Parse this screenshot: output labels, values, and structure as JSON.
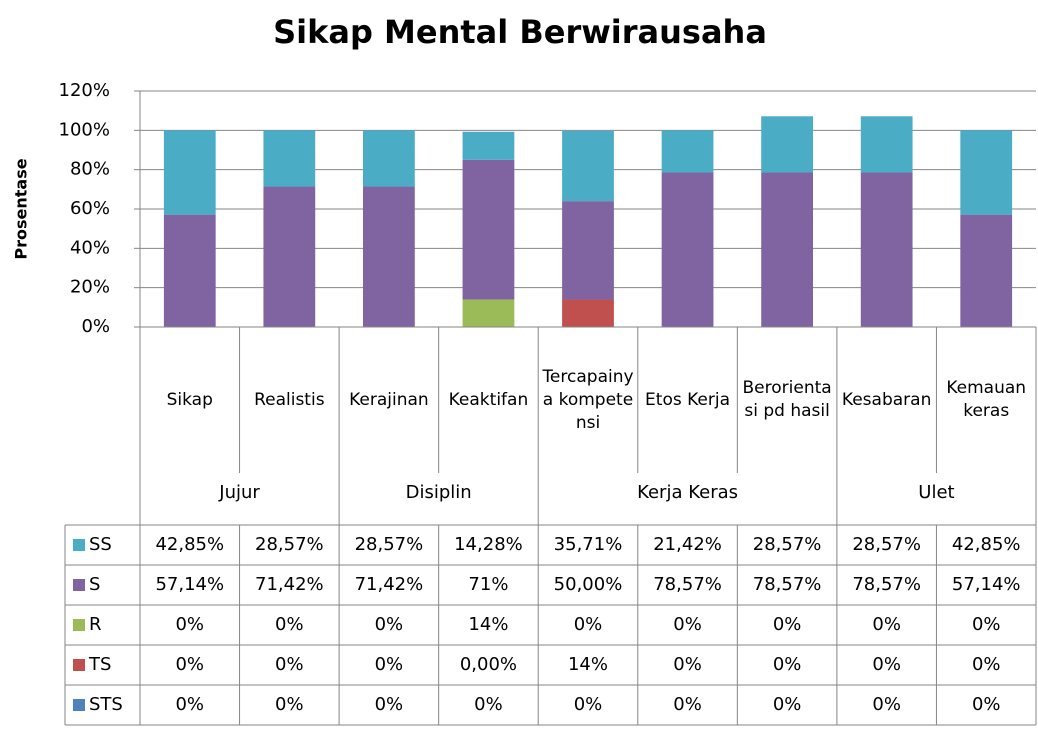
{
  "chart_data": {
    "type": "bar",
    "stacked": true,
    "title": "Sikap Mental Berwirausaha",
    "y_label": "Prosentase",
    "groups": [
      {
        "name": "Jujur",
        "categories": [
          "Sikap",
          "Realistis"
        ]
      },
      {
        "name": "Disiplin",
        "categories": [
          "Kerajinan",
          "Keaktifan"
        ]
      },
      {
        "name": "Kerja Keras",
        "categories": [
          "Tercapainya kompetensi",
          "Etos Kerja",
          "Berorientasi pd hasil"
        ]
      },
      {
        "name": "Ulet",
        "categories": [
          "Kesabaran",
          "Kemauan keras"
        ]
      }
    ],
    "series": [
      {
        "name": "SS",
        "color": "#4bacc6",
        "values": [
          42.85,
          28.57,
          28.57,
          14.28,
          35.71,
          21.42,
          28.57,
          28.57,
          42.85
        ],
        "value_labels": [
          "42,85%",
          "28,57%",
          "28,57%",
          "14,28%",
          "35,71%",
          "21,42%",
          "28,57%",
          "28,57%",
          "42,85%"
        ]
      },
      {
        "name": "S",
        "color": "#8064a2",
        "values": [
          57.14,
          71.42,
          71.42,
          71,
          50.0,
          78.57,
          78.57,
          78.57,
          57.14
        ],
        "value_labels": [
          "57,14%",
          "71,42%",
          "71,42%",
          "71%",
          "50,00%",
          "78,57%",
          "78,57%",
          "78,57%",
          "57,14%"
        ]
      },
      {
        "name": "R",
        "color": "#9bbb59",
        "values": [
          0,
          0,
          0,
          14,
          0,
          0,
          0,
          0,
          0
        ],
        "value_labels": [
          "0%",
          "0%",
          "0%",
          "14%",
          "0%",
          "0%",
          "0%",
          "0%",
          "0%"
        ]
      },
      {
        "name": "TS",
        "color": "#c0504d",
        "values": [
          0,
          0,
          0,
          0,
          14,
          0,
          0,
          0,
          0
        ],
        "value_labels": [
          "0%",
          "0%",
          "0%",
          "0,00%",
          "14%",
          "0%",
          "0%",
          "0%",
          "0%"
        ]
      },
      {
        "name": "STS",
        "color": "#4f81bd",
        "values": [
          0,
          0,
          0,
          0,
          0,
          0,
          0,
          0,
          0
        ],
        "value_labels": [
          "0%",
          "0%",
          "0%",
          "0%",
          "0%",
          "0%",
          "0%",
          "0%",
          "0%"
        ]
      }
    ],
    "ylim": [
      0,
      120
    ],
    "yticks": [
      {
        "value": 0,
        "label": "0%"
      },
      {
        "value": 20,
        "label": "20%"
      },
      {
        "value": 40,
        "label": "40%"
      },
      {
        "value": 60,
        "label": "60%"
      },
      {
        "value": 80,
        "label": "80%"
      },
      {
        "value": 100,
        "label": "100%"
      },
      {
        "value": 120,
        "label": "120%"
      }
    ],
    "grid": true
  }
}
